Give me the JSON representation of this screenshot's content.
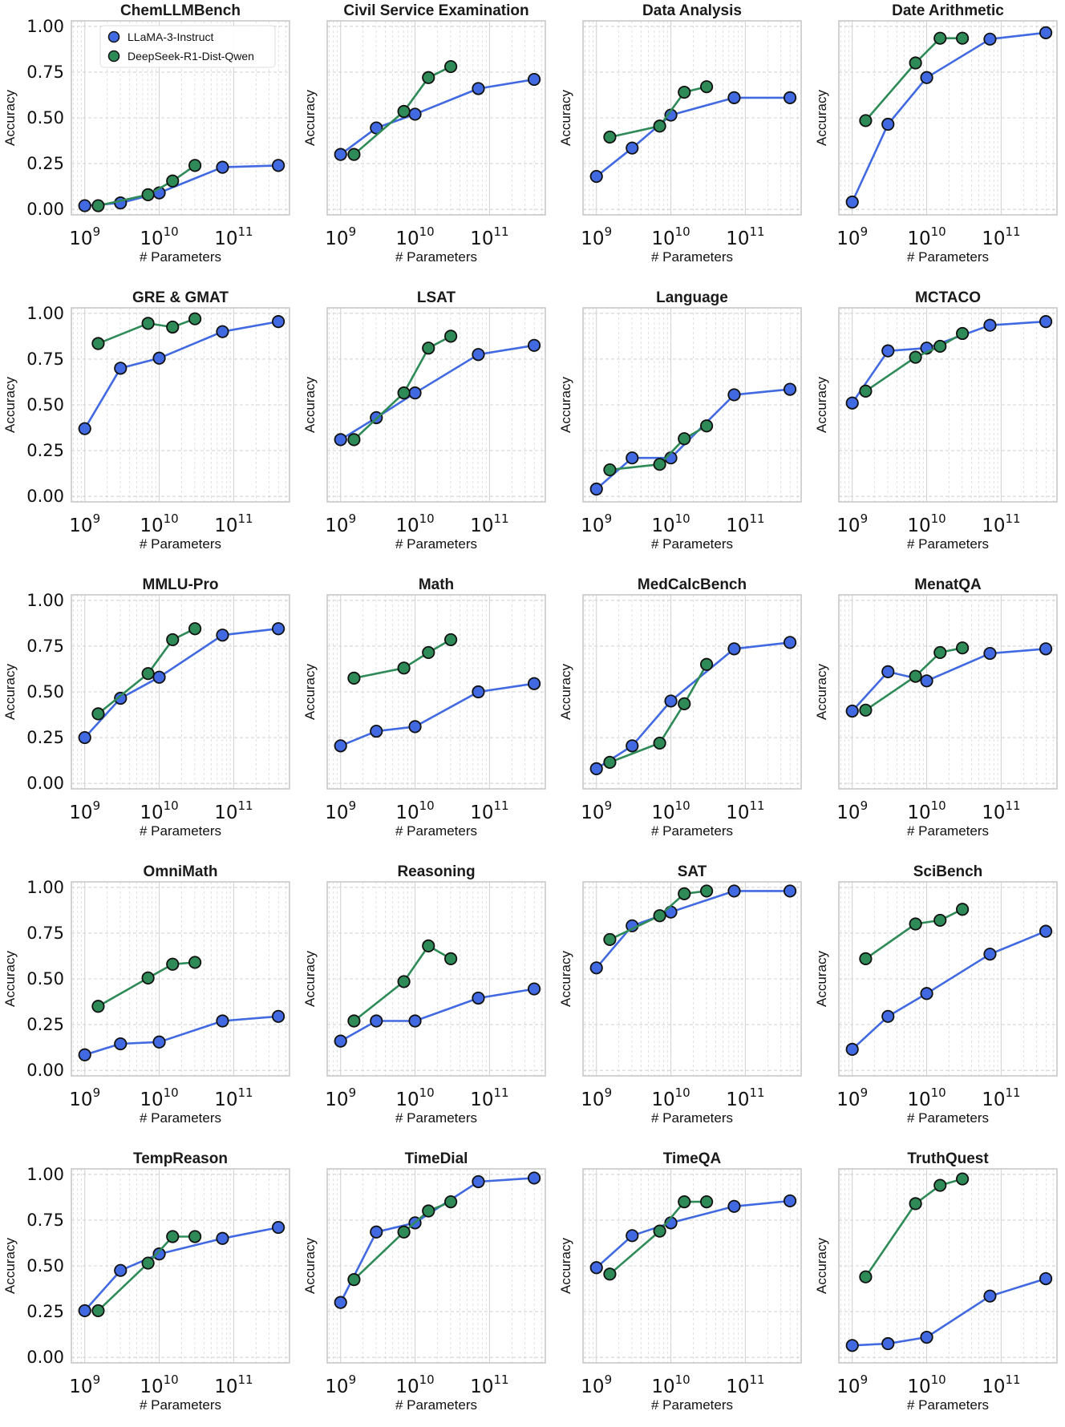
{
  "figure": {
    "x_label": "# Parameters",
    "y_label": "Accuracy",
    "x_ticks": [
      {
        "base": "10",
        "exp": "9"
      },
      {
        "base": "10",
        "exp": "10"
      },
      {
        "base": "10",
        "exp": "11"
      }
    ],
    "y_ticks": [
      "0.00",
      "0.25",
      "0.50",
      "0.75",
      "1.00"
    ],
    "legend": [
      {
        "label": "LLaMA-3-Instruct",
        "color": "#4169e1"
      },
      {
        "label": "DeepSeek-R1-Dist-Qwen",
        "color": "#2e8b57"
      }
    ]
  },
  "chart_data": {
    "type": "line",
    "x_scale": "log",
    "x_range_log10": [
      8.82,
      11.75
    ],
    "ylim": [
      -0.03,
      1.03
    ],
    "llama_params_log10": [
      9.0,
      9.48,
      10.0,
      10.85,
      11.6
    ],
    "qwen_params_log10": [
      9.18,
      9.85,
      10.18,
      10.48
    ],
    "panels": [
      {
        "title": "ChemLLMBench",
        "llama": [
          0.02,
          0.035,
          0.09,
          0.23,
          0.24
        ],
        "qwen": [
          0.02,
          0.08,
          0.155,
          0.24
        ]
      },
      {
        "title": "Civil Service Examination",
        "llama": [
          0.3,
          0.445,
          0.52,
          0.66,
          0.71
        ],
        "qwen": [
          0.3,
          0.535,
          0.72,
          0.78
        ]
      },
      {
        "title": "Data Analysis",
        "llama": [
          0.18,
          0.335,
          0.515,
          0.61,
          0.61
        ],
        "qwen": [
          0.395,
          0.455,
          0.64,
          0.67
        ]
      },
      {
        "title": "Date Arithmetic",
        "llama": [
          0.04,
          0.465,
          0.72,
          0.93,
          0.965
        ],
        "qwen": [
          0.485,
          0.8,
          0.935,
          0.935
        ]
      },
      {
        "title": "GRE & GMAT",
        "llama": [
          0.37,
          0.7,
          0.755,
          0.9,
          0.955
        ],
        "qwen": [
          0.835,
          0.945,
          0.925,
          0.97
        ]
      },
      {
        "title": "LSAT",
        "llama": [
          0.31,
          0.43,
          0.565,
          0.775,
          0.825
        ],
        "qwen": [
          0.31,
          0.565,
          0.81,
          0.875
        ]
      },
      {
        "title": "Language",
        "llama": [
          0.04,
          0.21,
          0.21,
          0.555,
          0.585
        ],
        "qwen": [
          0.145,
          0.175,
          0.315,
          0.385
        ]
      },
      {
        "title": "MCTACO",
        "llama": [
          0.51,
          0.795,
          0.81,
          0.935,
          0.955
        ],
        "qwen": [
          0.575,
          0.76,
          0.82,
          0.89
        ]
      },
      {
        "title": "MMLU-Pro",
        "llama": [
          0.25,
          0.465,
          0.58,
          0.81,
          0.845
        ],
        "qwen": [
          0.38,
          0.6,
          0.785,
          0.845
        ]
      },
      {
        "title": "Math",
        "llama": [
          0.205,
          0.285,
          0.31,
          0.5,
          0.545
        ],
        "qwen": [
          0.575,
          0.63,
          0.715,
          0.785
        ]
      },
      {
        "title": "MedCalcBench",
        "llama": [
          0.08,
          0.205,
          0.45,
          0.735,
          0.77
        ],
        "qwen": [
          0.115,
          0.22,
          0.435,
          0.65
        ]
      },
      {
        "title": "MenatQA",
        "llama": [
          0.395,
          0.61,
          0.56,
          0.71,
          0.735
        ],
        "qwen": [
          0.4,
          0.585,
          0.715,
          0.74
        ]
      },
      {
        "title": "OmniMath",
        "llama": [
          0.085,
          0.145,
          0.155,
          0.27,
          0.295
        ],
        "qwen": [
          0.35,
          0.505,
          0.58,
          0.59
        ]
      },
      {
        "title": "Reasoning",
        "llama": [
          0.16,
          0.27,
          0.27,
          0.395,
          0.445
        ],
        "qwen": [
          0.27,
          0.485,
          0.68,
          0.61
        ]
      },
      {
        "title": "SAT",
        "llama": [
          0.56,
          0.79,
          0.865,
          0.98,
          0.98
        ],
        "qwen": [
          0.715,
          0.845,
          0.965,
          0.98
        ]
      },
      {
        "title": "SciBench",
        "llama": [
          0.115,
          0.295,
          0.42,
          0.635,
          0.76
        ],
        "qwen": [
          0.61,
          0.8,
          0.82,
          0.88
        ]
      },
      {
        "title": "TempReason",
        "llama": [
          0.255,
          0.475,
          0.565,
          0.65,
          0.71
        ],
        "qwen": [
          0.255,
          0.515,
          0.66,
          0.66
        ]
      },
      {
        "title": "TimeDial",
        "llama": [
          0.3,
          0.685,
          0.735,
          0.96,
          0.98
        ],
        "qwen": [
          0.425,
          0.685,
          0.8,
          0.85
        ]
      },
      {
        "title": "TimeQA",
        "llama": [
          0.49,
          0.665,
          0.735,
          0.825,
          0.855
        ],
        "qwen": [
          0.455,
          0.69,
          0.85,
          0.85
        ]
      },
      {
        "title": "TruthQuest",
        "llama": [
          0.065,
          0.075,
          0.11,
          0.335,
          0.43
        ],
        "qwen": [
          0.44,
          0.84,
          0.94,
          0.975
        ]
      }
    ]
  }
}
